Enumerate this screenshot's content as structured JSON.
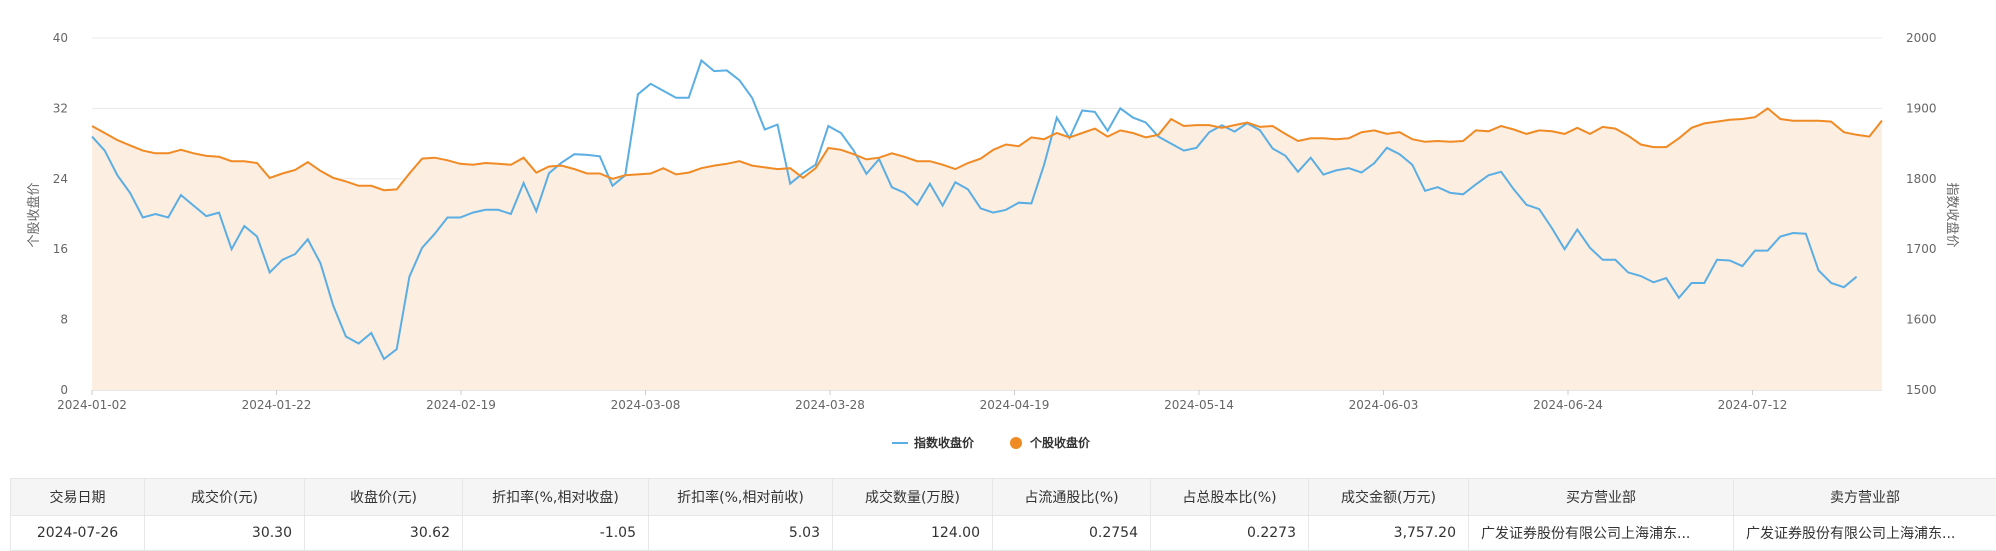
{
  "chart_data": {
    "type": "line",
    "x_tick_labels": [
      "2024-01-02",
      "2024-01-22",
      "2024-02-19",
      "2024-03-08",
      "2024-03-28",
      "2024-04-19",
      "2024-05-14",
      "2024-06-03",
      "2024-06-24",
      "2024-07-12"
    ],
    "y_left": {
      "label": "个股收盘价",
      "ticks": [
        "0",
        "8",
        "16",
        "24",
        "32",
        "40"
      ],
      "range": [
        0,
        40
      ]
    },
    "y_right": {
      "label": "指数收盘价",
      "ticks": [
        "1500",
        "1600",
        "1700",
        "1800",
        "1900",
        "2000"
      ],
      "range": [
        1500,
        2000
      ]
    },
    "grid": true,
    "legend_position": "bottom-center",
    "colors": {
      "index_line": "#5aaee3",
      "stock_line": "#f08a24",
      "stock_area": "#fdeee2"
    },
    "series": [
      {
        "name": "指数收盘价",
        "axis": "right",
        "values": [
          1860,
          1840,
          1805,
          1780,
          1745,
          1750,
          1745,
          1777,
          1762,
          1747,
          1752,
          1700,
          1733,
          1718,
          1667,
          1685,
          1693,
          1714,
          1680,
          1620,
          1576,
          1566,
          1581,
          1544,
          1558,
          1661,
          1702,
          1722,
          1745,
          1745,
          1752,
          1756,
          1756,
          1750,
          1794,
          1754,
          1808,
          1823,
          1835,
          1834,
          1832,
          1790,
          1805,
          1920,
          1935,
          1925,
          1915,
          1915,
          1968,
          1953,
          1954,
          1940,
          1915,
          1870,
          1877,
          1793,
          1808,
          1820,
          1875,
          1865,
          1840,
          1807,
          1828,
          1788,
          1780,
          1763,
          1793,
          1762,
          1795,
          1785,
          1758,
          1752,
          1756,
          1766,
          1765,
          1820,
          1887,
          1858,
          1897,
          1895,
          1868,
          1900,
          1887,
          1880,
          1860,
          1850,
          1840,
          1844,
          1866,
          1876,
          1867,
          1879,
          1869,
          1843,
          1833,
          1810,
          1830,
          1806,
          1812,
          1815,
          1809,
          1822,
          1844,
          1835,
          1820,
          1783,
          1788,
          1780,
          1778,
          1792,
          1805,
          1810,
          1785,
          1763,
          1757,
          1730,
          1700,
          1728,
          1702,
          1685,
          1685,
          1667,
          1662,
          1653,
          1659,
          1631,
          1652,
          1652,
          1685,
          1684,
          1676,
          1698,
          1698,
          1718,
          1723,
          1722,
          1670,
          1652,
          1646,
          1661
        ]
      },
      {
        "name": "个股收盘价",
        "axis": "left",
        "values": [
          30.0,
          29.2,
          28.4,
          27.8,
          27.2,
          26.9,
          26.9,
          27.3,
          26.9,
          26.6,
          26.5,
          26.0,
          26.0,
          25.8,
          24.1,
          24.6,
          25.0,
          25.9,
          24.9,
          24.1,
          23.7,
          23.2,
          23.2,
          22.7,
          22.8,
          24.6,
          26.3,
          26.4,
          26.1,
          25.7,
          25.6,
          25.8,
          25.7,
          25.6,
          26.4,
          24.7,
          25.4,
          25.5,
          25.1,
          24.6,
          24.6,
          24.0,
          24.4,
          24.5,
          24.6,
          25.2,
          24.5,
          24.7,
          25.2,
          25.5,
          25.7,
          26.0,
          25.5,
          25.3,
          25.1,
          25.2,
          24.1,
          25.2,
          27.5,
          27.3,
          26.8,
          26.2,
          26.4,
          26.9,
          26.5,
          26.0,
          26.0,
          25.6,
          25.1,
          25.8,
          26.3,
          27.3,
          27.9,
          27.7,
          28.7,
          28.5,
          29.2,
          28.7,
          29.2,
          29.7,
          28.8,
          29.5,
          29.2,
          28.7,
          29.0,
          30.8,
          30.0,
          30.1,
          30.1,
          29.8,
          30.1,
          30.4,
          29.9,
          30.0,
          29.1,
          28.3,
          28.6,
          28.6,
          28.5,
          28.6,
          29.3,
          29.5,
          29.1,
          29.3,
          28.5,
          28.2,
          28.3,
          28.2,
          28.3,
          29.5,
          29.4,
          30.0,
          29.6,
          29.1,
          29.5,
          29.4,
          29.1,
          29.8,
          29.1,
          29.9,
          29.7,
          28.9,
          27.9,
          27.6,
          27.6,
          28.6,
          29.8,
          30.3,
          30.5,
          30.7,
          30.8,
          31.0,
          32.0,
          30.8,
          30.6,
          30.6,
          30.6,
          30.5,
          29.3,
          29.0,
          28.8,
          30.62
        ]
      }
    ]
  },
  "table": {
    "headers": [
      "交易日期",
      "成交价(元)",
      "收盘价(元)",
      "折扣率(%,相对收盘)",
      "折扣率(%,相对前收)",
      "成交数量(万股)",
      "占流通股比(%)",
      "占总股本比(%)",
      "成交金额(万元)",
      "买方营业部",
      "卖方营业部"
    ],
    "row": {
      "date": "2024-07-26",
      "deal_price": "30.30",
      "close_price": "30.62",
      "discount_close": "-1.05",
      "discount_prev": "5.03",
      "volume": "124.00",
      "float_ratio": "0.2754",
      "total_ratio": "0.2273",
      "amount": "3,757.20",
      "buyer": "广发证券股份有限公司上海浦东...",
      "seller": "广发证券股份有限公司上海浦东..."
    }
  }
}
